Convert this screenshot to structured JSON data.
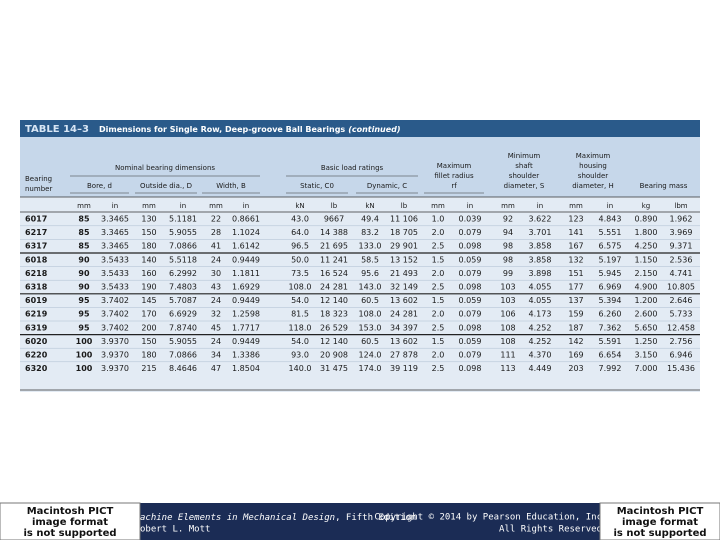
{
  "table": {
    "label": "TABLE 14–3",
    "title": "Dimensions for Single Row, Deep-groove Ball Bearings",
    "title_note": "(continued)",
    "group_headers": [
      "Nominal bearing dimensions",
      "Basic load ratings"
    ],
    "column_headers": [
      [
        "Bearing",
        "number"
      ],
      [
        "Bore, d"
      ],
      [
        "Outside dia., D"
      ],
      [
        "Width, B"
      ],
      [
        "Static, C0"
      ],
      [
        "Dynamic, C"
      ],
      [
        "Maximum",
        "fillet radius",
        "rf"
      ],
      [
        "Minimum",
        "shaft",
        "shoulder",
        "diameter, S"
      ],
      [
        "Maximum",
        "housing",
        "shoulder",
        "diameter, H"
      ],
      [
        "Bearing mass"
      ]
    ],
    "units": [
      "mm",
      "in",
      "mm",
      "in",
      "mm",
      "in",
      "kN",
      "lb",
      "kN",
      "lb",
      "mm",
      "in",
      "mm",
      "in",
      "mm",
      "in",
      "kg",
      "lbm"
    ],
    "rows": [
      [
        "6017",
        "85",
        "3.3465",
        "130",
        "5.1181",
        "22",
        "0.8661",
        "43.0",
        "9667",
        "49.4",
        "11 106",
        "1.0",
        "0.039",
        "92",
        "3.622",
        "123",
        "4.843",
        "0.890",
        "1.962"
      ],
      [
        "6217",
        "85",
        "3.3465",
        "150",
        "5.9055",
        "28",
        "1.1024",
        "64.0",
        "14 388",
        "83.2",
        "18 705",
        "2.0",
        "0.079",
        "94",
        "3.701",
        "141",
        "5.551",
        "1.800",
        "3.969"
      ],
      [
        "6317",
        "85",
        "3.3465",
        "180",
        "7.0866",
        "41",
        "1.6142",
        "96.5",
        "21 695",
        "133.0",
        "29 901",
        "2.5",
        "0.098",
        "98",
        "3.858",
        "167",
        "6.575",
        "4.250",
        "9.371"
      ],
      [
        "6018",
        "90",
        "3.5433",
        "140",
        "5.5118",
        "24",
        "0.9449",
        "50.0",
        "11 241",
        "58.5",
        "13 152",
        "1.5",
        "0.059",
        "98",
        "3.858",
        "132",
        "5.197",
        "1.150",
        "2.536"
      ],
      [
        "6218",
        "90",
        "3.5433",
        "160",
        "6.2992",
        "30",
        "1.1811",
        "73.5",
        "16 524",
        "95.6",
        "21 493",
        "2.0",
        "0.079",
        "99",
        "3.898",
        "151",
        "5.945",
        "2.150",
        "4.741"
      ],
      [
        "6318",
        "90",
        "3.5433",
        "190",
        "7.4803",
        "43",
        "1.6929",
        "108.0",
        "24 281",
        "143.0",
        "32 149",
        "2.5",
        "0.098",
        "103",
        "4.055",
        "177",
        "6.969",
        "4.900",
        "10.805"
      ],
      [
        "6019",
        "95",
        "3.7402",
        "145",
        "5.7087",
        "24",
        "0.9449",
        "54.0",
        "12 140",
        "60.5",
        "13 602",
        "1.5",
        "0.059",
        "103",
        "4.055",
        "137",
        "5.394",
        "1.200",
        "2.646"
      ],
      [
        "6219",
        "95",
        "3.7402",
        "170",
        "6.6929",
        "32",
        "1.2598",
        "81.5",
        "18 323",
        "108.0",
        "24 281",
        "2.0",
        "0.079",
        "106",
        "4.173",
        "159",
        "6.260",
        "2.600",
        "5.733"
      ],
      [
        "6319",
        "95",
        "3.7402",
        "200",
        "7.8740",
        "45",
        "1.7717",
        "118.0",
        "26 529",
        "153.0",
        "34 397",
        "2.5",
        "0.098",
        "108",
        "4.252",
        "187",
        "7.362",
        "5.650",
        "12.458"
      ],
      [
        "6020",
        "100",
        "3.9370",
        "150",
        "5.9055",
        "24",
        "0.9449",
        "54.0",
        "12 140",
        "60.5",
        "13 602",
        "1.5",
        "0.059",
        "108",
        "4.252",
        "142",
        "5.591",
        "1.250",
        "2.756"
      ],
      [
        "6220",
        "100",
        "3.9370",
        "180",
        "7.0866",
        "34",
        "1.3386",
        "93.0",
        "20 908",
        "124.0",
        "27 878",
        "2.0",
        "0.079",
        "111",
        "4.370",
        "169",
        "6.654",
        "3.150",
        "6.946"
      ],
      [
        "6320",
        "100",
        "3.9370",
        "215",
        "8.4646",
        "47",
        "1.8504",
        "140.0",
        "31 475",
        "174.0",
        "39 119",
        "2.5",
        "0.098",
        "113",
        "4.449",
        "203",
        "7.992",
        "7.000",
        "15.436"
      ]
    ]
  },
  "footer": {
    "book": "achine Elements in Mechanical Design",
    "edition": ", Fifth Edition",
    "author": "obert L. Mott",
    "copyright": "Copyright © 2014 by Pearson Education, Inc",
    "rights": "All Rights Reserved",
    "placeholder": [
      "Macintosh PICT",
      "image format",
      "is not supported"
    ]
  }
}
